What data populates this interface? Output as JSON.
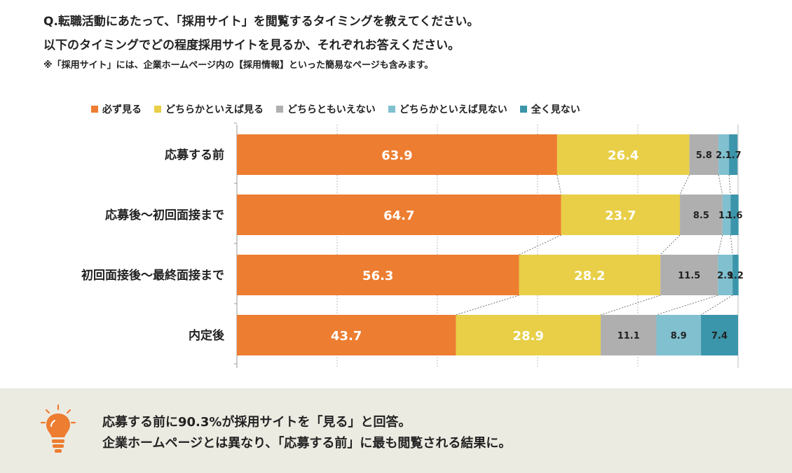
{
  "question": {
    "line1": "Q.転職活動にあたって、「採用サイト」を閲覧するタイミングを教えてください。",
    "line2": "以下のタイミングでどの程度採用サイトを見るか、それぞれお答えください。",
    "note": "※「採用サイト」には、企業ホームページ内の【採用情報】といった簡易なページも含みます。"
  },
  "legend": [
    {
      "label": "必ず見る",
      "color": "#ed7d31"
    },
    {
      "label": "どちらかといえば見る",
      "color": "#e8cf47"
    },
    {
      "label": "どちらともいえない",
      "color": "#afafaf"
    },
    {
      "label": "どちらかといえば見ない",
      "color": "#80c0cf"
    },
    {
      "label": "全く見ない",
      "color": "#3b95ab"
    }
  ],
  "chart_data": {
    "type": "bar",
    "orientation": "horizontal",
    "stacked": true,
    "categories": [
      "応募する前",
      "応募後～初回面接まで",
      "初回面接後～最終面接まで",
      "内定後"
    ],
    "series": [
      {
        "name": "必ず見る",
        "values": [
          63.9,
          64.7,
          56.3,
          43.7
        ],
        "labels": [
          "63.9",
          "64.7",
          "56.3",
          "43.7"
        ]
      },
      {
        "name": "どちらかといえば見る",
        "values": [
          26.4,
          23.7,
          28.2,
          28.9
        ],
        "labels": [
          "26.4",
          "23.7",
          "28.2",
          "28.9"
        ]
      },
      {
        "name": "どちらともいえない",
        "values": [
          5.8,
          8.5,
          11.5,
          11.1
        ],
        "labels": [
          "5.8",
          "8.5",
          "11.5",
          "11.1"
        ]
      },
      {
        "name": "どちらかといえば見ない",
        "values": [
          2.1,
          1.6,
          2.9,
          8.9
        ],
        "labels": [
          "2.1",
          "1.6",
          "2.9",
          "8.9"
        ]
      },
      {
        "name": "全く見ない",
        "values": [
          1.7,
          1.6,
          1.2,
          7.4
        ],
        "labels": [
          "1.7",
          "1.6",
          "1.2",
          "7.4"
        ]
      }
    ],
    "xlim": [
      0,
      100
    ],
    "grid": true,
    "legend_position": "top"
  },
  "summary": {
    "line1": "応募する前に90.3%が採用サイトを「見る」と回答。",
    "line2": "企業ホームページとは異なり、「応募する前」に最も閲覧される結果に。"
  }
}
